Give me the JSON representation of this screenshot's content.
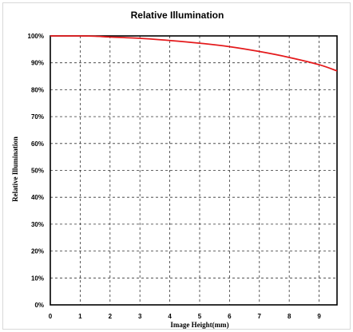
{
  "chart_data": {
    "type": "line",
    "title": "Relative Illumination",
    "xlabel": "Image Height(mm)",
    "ylabel": "Relative Illumination",
    "xlim": [
      0,
      9.6
    ],
    "ylim": [
      0,
      100
    ],
    "x_ticks": [
      "0",
      "1",
      "2",
      "3",
      "4",
      "5",
      "6",
      "7",
      "8",
      "9"
    ],
    "y_ticks": [
      "0%",
      "10%",
      "20%",
      "30%",
      "40%",
      "50%",
      "60%",
      "70%",
      "80%",
      "90%",
      "100%"
    ],
    "grid": true,
    "legend": "none",
    "series": [
      {
        "color": "#e41a1c",
        "x": [
          0,
          1,
          1.5,
          2,
          3,
          4,
          5,
          6,
          7,
          8,
          9,
          9.6
        ],
        "y": [
          100,
          100,
          99.9,
          99.6,
          99.1,
          98.3,
          97.3,
          96.0,
          94.2,
          92.0,
          89.3,
          87.0
        ]
      }
    ]
  }
}
